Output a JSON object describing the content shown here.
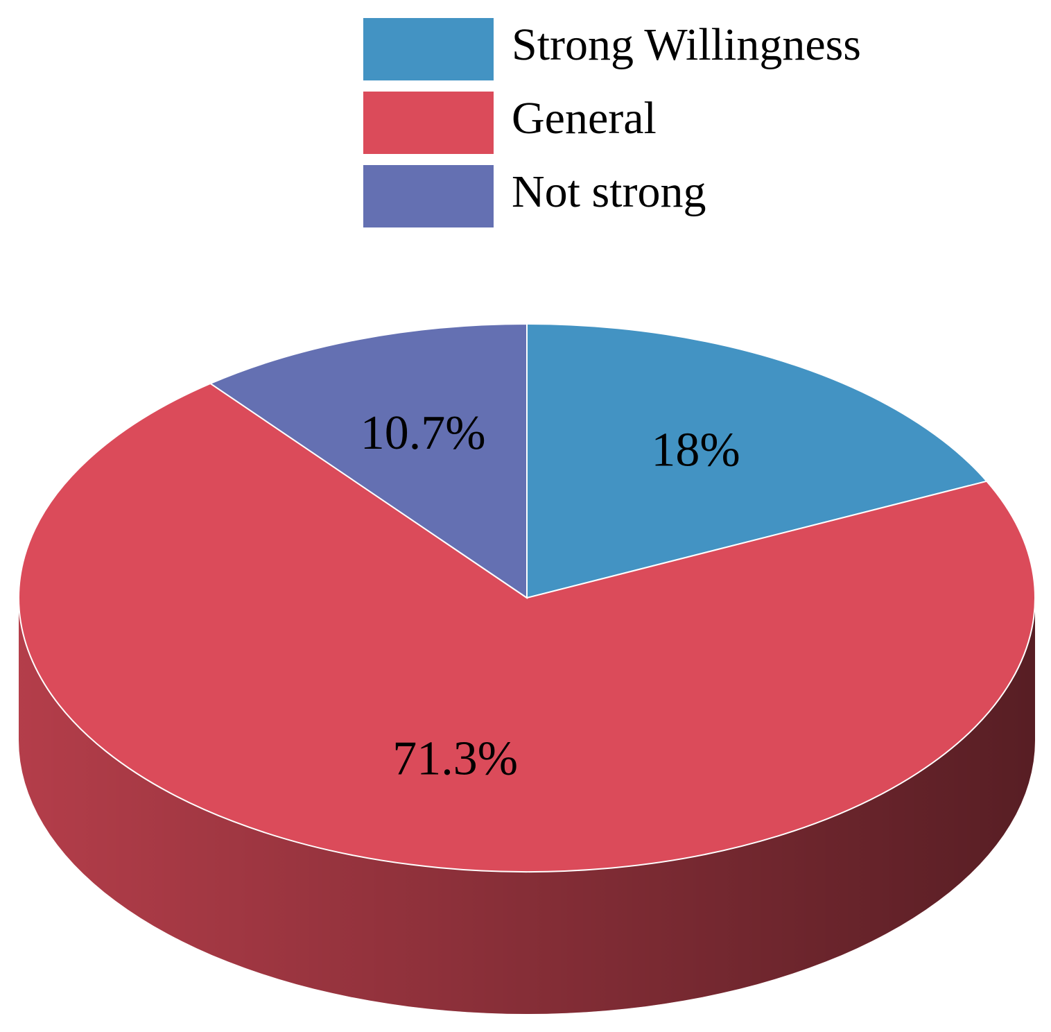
{
  "chart_data": {
    "type": "pie",
    "categories": [
      "Strong Willingness",
      "General",
      "Not strong"
    ],
    "values": [
      18,
      71.3,
      10.7
    ],
    "value_labels": [
      "18%",
      "71.3%",
      "10.7%"
    ],
    "colors": [
      "#4393c3",
      "#db4b5a",
      "#6470b2"
    ],
    "legend": "top"
  }
}
